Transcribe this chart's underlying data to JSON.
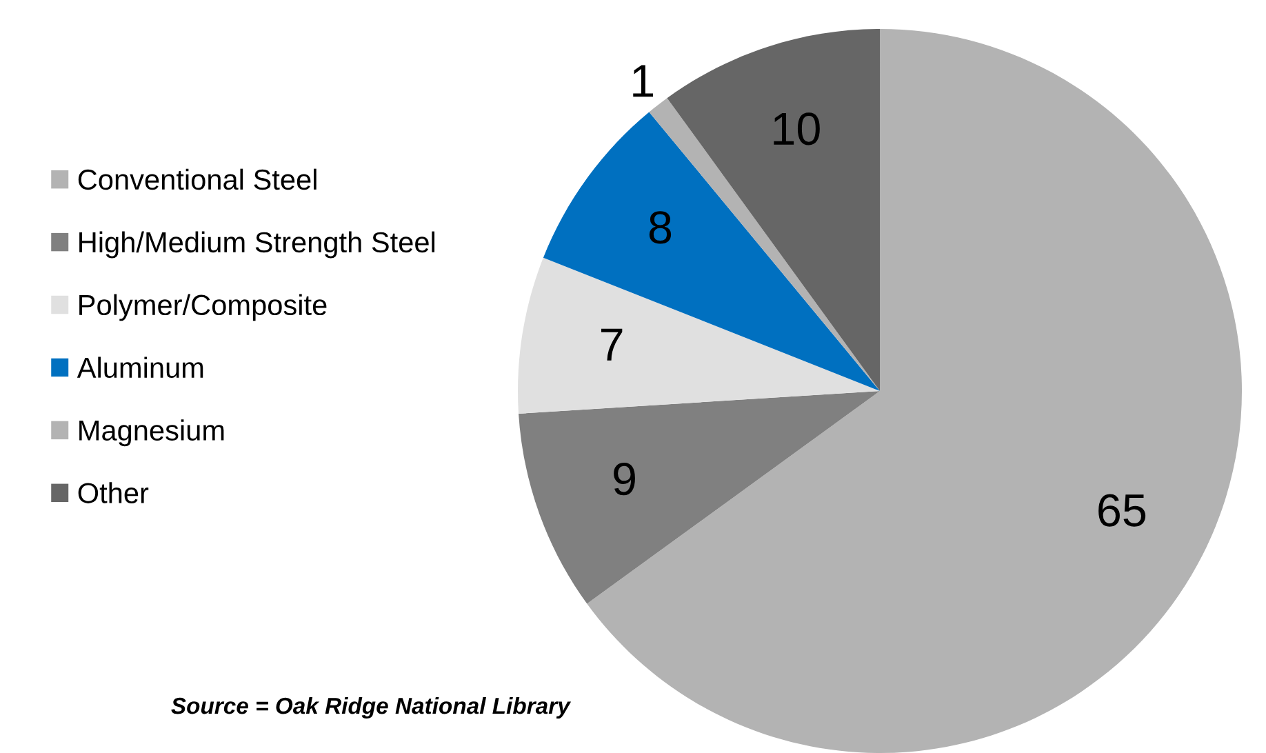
{
  "chart_data": {
    "type": "pie",
    "categories": [
      "Conventional Steel",
      "High/Medium Strength Steel",
      "Polymer/Composite",
      "Aluminum",
      "Magnesium",
      "Other"
    ],
    "values": [
      65,
      9,
      7,
      8,
      1,
      10
    ],
    "colors": [
      "#b3b3b3",
      "#808080",
      "#e0e0e0",
      "#0070c0",
      "#b3b3b3",
      "#666666"
    ],
    "data_labels": true,
    "legend": "left",
    "annotations": [
      "Source = Oak Ridge National Library"
    ]
  }
}
